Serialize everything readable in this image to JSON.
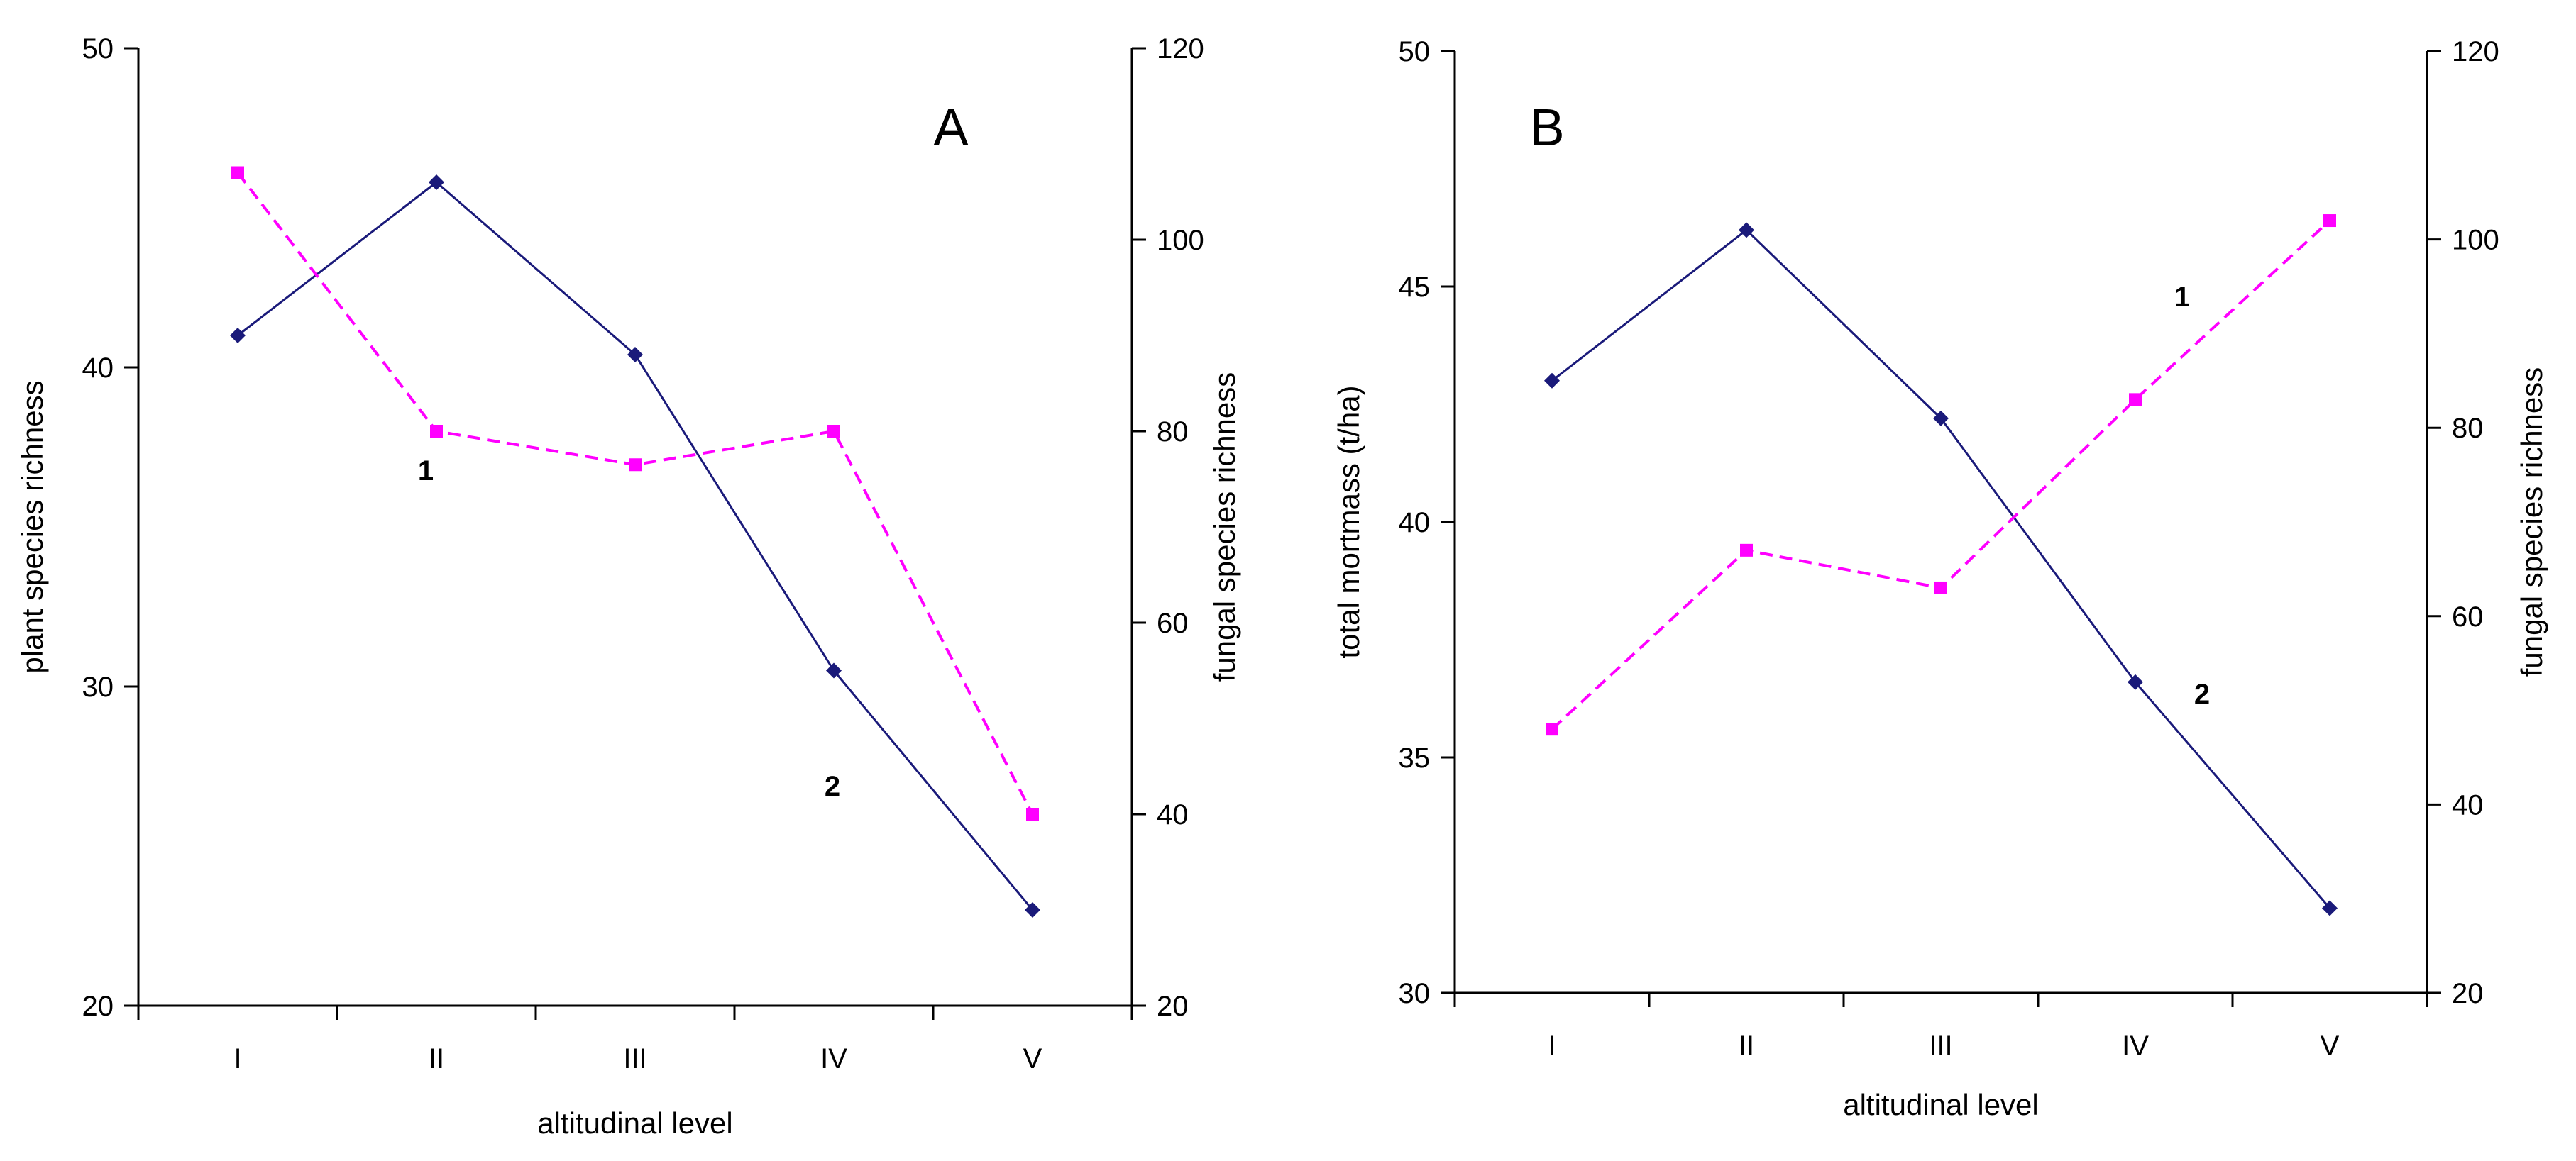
{
  "chart_data": [
    {
      "type": "line",
      "panel_label": "A",
      "xlabel": "altitudinal level",
      "ylabel": "plant species richness",
      "y2label": "fungal species richness",
      "categories": [
        "I",
        "II",
        "III",
        "IV",
        "V"
      ],
      "ylim": [
        20,
        50
      ],
      "yticks": [
        "20",
        "30",
        "40",
        "50"
      ],
      "y2lim": [
        20,
        120
      ],
      "y2ticks": [
        "20",
        "40",
        "60",
        "80",
        "100",
        "120"
      ],
      "series": [
        {
          "name": "2",
          "axis": "left",
          "color": "#1a1a7a",
          "style": "solid",
          "marker": "diamond",
          "values": [
            41,
            45.8,
            40.4,
            30.5,
            23
          ]
        },
        {
          "name": "1",
          "axis": "right",
          "color": "#ff00ff",
          "style": "dashed",
          "marker": "square",
          "values": [
            107,
            80,
            76.5,
            80,
            40
          ]
        }
      ],
      "series_labels": [
        {
          "text": "1",
          "near": "fungal series below point II"
        },
        {
          "text": "2",
          "near": "plant series below point IV"
        }
      ]
    },
    {
      "type": "line",
      "panel_label": "B",
      "xlabel": "altitudinal level",
      "ylabel": "total mortmass (t/ha)",
      "y2label": "fungal species richness",
      "categories": [
        "I",
        "II",
        "III",
        "IV",
        "V"
      ],
      "ylim": [
        30,
        50
      ],
      "yticks": [
        "30",
        "35",
        "40",
        "45",
        "50"
      ],
      "y2lim": [
        20,
        120
      ],
      "y2ticks": [
        "20",
        "40",
        "60",
        "80",
        "100",
        "120"
      ],
      "series": [
        {
          "name": "2",
          "axis": "left",
          "color": "#1a1a7a",
          "style": "solid",
          "marker": "diamond",
          "values": [
            43,
            46.2,
            42.2,
            36.6,
            31.8
          ]
        },
        {
          "name": "1",
          "axis": "right",
          "color": "#ff00ff",
          "style": "dashed",
          "marker": "square",
          "values": [
            48,
            67,
            63,
            83,
            102
          ]
        }
      ],
      "series_labels": [
        {
          "text": "1",
          "near": "fungal series above point IV"
        },
        {
          "text": "2",
          "near": "mortmass series right of point IV"
        }
      ]
    }
  ]
}
